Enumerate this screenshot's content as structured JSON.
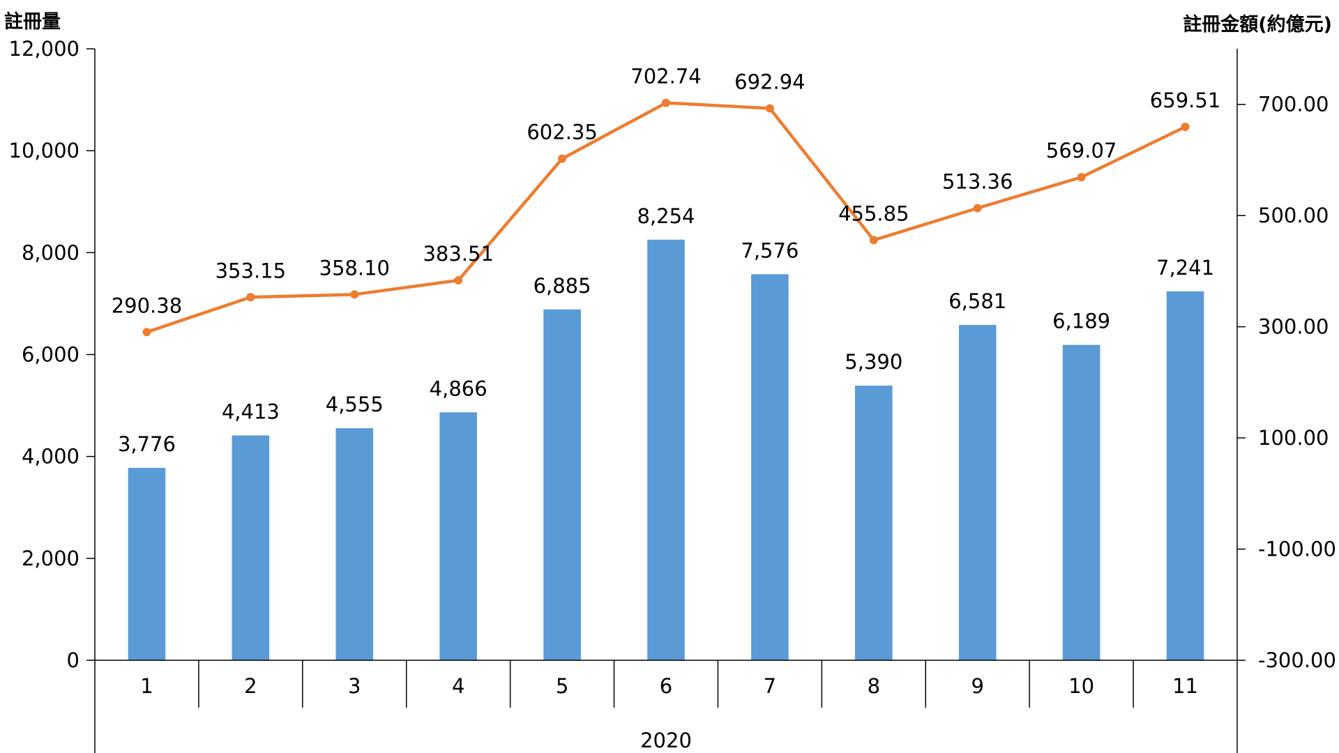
{
  "chart_data": {
    "type": "bar",
    "categories": [
      "1",
      "2",
      "3",
      "4",
      "5",
      "6",
      "7",
      "8",
      "9",
      "10",
      "11"
    ],
    "group_label": "2020",
    "series": [
      {
        "name": "註冊量",
        "type": "bar",
        "axis": "left",
        "color": "#5B9BD5",
        "values": [
          3776,
          4413,
          4555,
          4866,
          6885,
          8254,
          7576,
          5390,
          6581,
          6189,
          7241
        ],
        "labels": [
          "3,776",
          "4,413",
          "4,555",
          "4,866",
          "6,885",
          "8,254",
          "7,576",
          "5,390",
          "6,581",
          "6,189",
          "7,241"
        ]
      },
      {
        "name": "註冊金額(約億元)",
        "type": "line",
        "axis": "right",
        "color": "#ED7D31",
        "values": [
          290.38,
          353.15,
          358.1,
          383.51,
          602.35,
          702.74,
          692.94,
          455.85,
          513.36,
          569.07,
          659.51
        ],
        "labels": [
          "290.38",
          "353.15",
          "358.10",
          "383.51",
          "602.35",
          "702.74",
          "692.94",
          "455.85",
          "513.36",
          "569.07",
          "659.51"
        ]
      }
    ],
    "y_left": {
      "title": "註冊量",
      "ylim": [
        0,
        12000
      ],
      "ticks": [
        0,
        2000,
        4000,
        6000,
        8000,
        10000,
        12000
      ],
      "tick_labels": [
        "0",
        "2,000",
        "4,000",
        "6,000",
        "8,000",
        "10,000",
        "12,000"
      ]
    },
    "y_right": {
      "title": "註冊金額(約億元)",
      "ylim": [
        -300,
        800
      ],
      "ticks": [
        -300,
        -100,
        100,
        300,
        500,
        700
      ],
      "tick_labels": [
        "-300.00",
        "-100.00",
        "100.00",
        "300.00",
        "500.00",
        "700.00"
      ]
    },
    "grid": false
  }
}
